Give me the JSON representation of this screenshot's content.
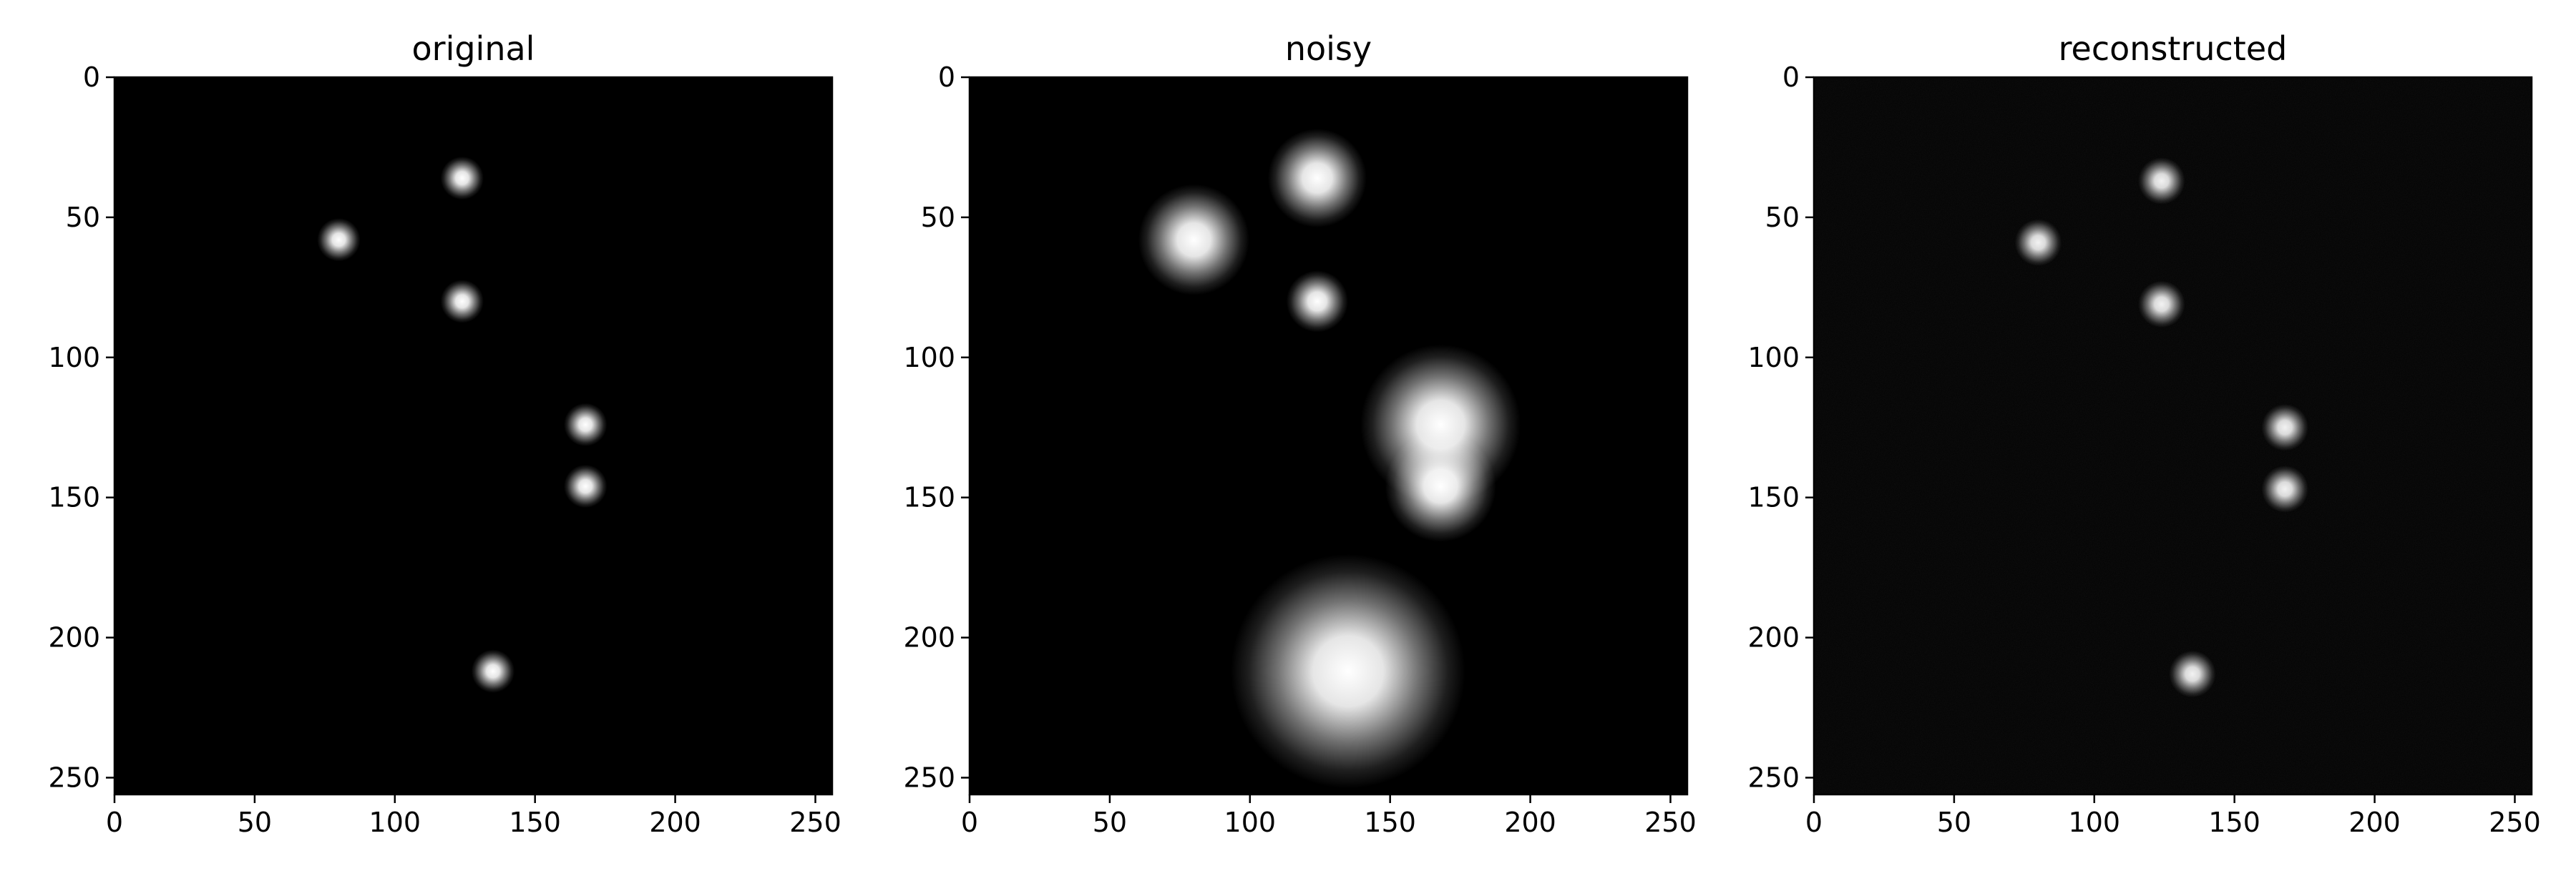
{
  "chart_data": [
    {
      "type": "heatmap",
      "title": "original",
      "xlabel": "",
      "ylabel": "",
      "colormap": "gray",
      "background": "#000000",
      "xlim": [
        0,
        256
      ],
      "ylim": [
        256,
        0
      ],
      "x_ticks": [
        0,
        50,
        100,
        150,
        200,
        250
      ],
      "y_ticks": [
        0,
        50,
        100,
        150,
        200,
        250
      ],
      "grid": false,
      "spots": [
        {
          "x": 124,
          "y": 36,
          "intensity": 1.0,
          "sigma": 3.5
        },
        {
          "x": 80,
          "y": 58,
          "intensity": 1.0,
          "sigma": 3.5
        },
        {
          "x": 124,
          "y": 80,
          "intensity": 1.0,
          "sigma": 3.5
        },
        {
          "x": 168,
          "y": 124,
          "intensity": 1.0,
          "sigma": 3.5
        },
        {
          "x": 168,
          "y": 146,
          "intensity": 1.0,
          "sigma": 3.5
        },
        {
          "x": 135,
          "y": 212,
          "intensity": 1.0,
          "sigma": 3.5
        }
      ]
    },
    {
      "type": "heatmap",
      "title": "noisy",
      "xlabel": "",
      "ylabel": "",
      "colormap": "gray",
      "background": "#000000",
      "xlim": [
        0,
        256
      ],
      "ylim": [
        256,
        0
      ],
      "x_ticks": [
        0,
        50,
        100,
        150,
        200,
        250
      ],
      "y_ticks": [
        0,
        50,
        100,
        150,
        200,
        250
      ],
      "grid": false,
      "spots": [
        {
          "x": 124,
          "y": 36,
          "intensity": 1.0,
          "sigma": 8
        },
        {
          "x": 80,
          "y": 58,
          "intensity": 1.0,
          "sigma": 9
        },
        {
          "x": 124,
          "y": 80,
          "intensity": 1.0,
          "sigma": 5
        },
        {
          "x": 168,
          "y": 124,
          "intensity": 1.0,
          "sigma": 13
        },
        {
          "x": 168,
          "y": 146,
          "intensity": 1.0,
          "sigma": 9
        },
        {
          "x": 135,
          "y": 212,
          "intensity": 1.0,
          "sigma": 19
        }
      ]
    },
    {
      "type": "heatmap",
      "title": "reconstructed",
      "xlabel": "",
      "ylabel": "",
      "colormap": "gray",
      "background": "#020202",
      "xlim": [
        0,
        256
      ],
      "ylim": [
        256,
        0
      ],
      "x_ticks": [
        0,
        50,
        100,
        150,
        200,
        250
      ],
      "y_ticks": [
        0,
        50,
        100,
        150,
        200,
        250
      ],
      "grid": false,
      "spots": [
        {
          "x": 124,
          "y": 37,
          "intensity": 0.95,
          "sigma": 3.8
        },
        {
          "x": 80,
          "y": 59,
          "intensity": 0.95,
          "sigma": 3.8
        },
        {
          "x": 124,
          "y": 81,
          "intensity": 0.95,
          "sigma": 3.8
        },
        {
          "x": 168,
          "y": 125,
          "intensity": 0.95,
          "sigma": 3.8
        },
        {
          "x": 168,
          "y": 147,
          "intensity": 0.95,
          "sigma": 3.8
        },
        {
          "x": 135,
          "y": 213,
          "intensity": 0.95,
          "sigma": 3.8
        }
      ]
    }
  ]
}
